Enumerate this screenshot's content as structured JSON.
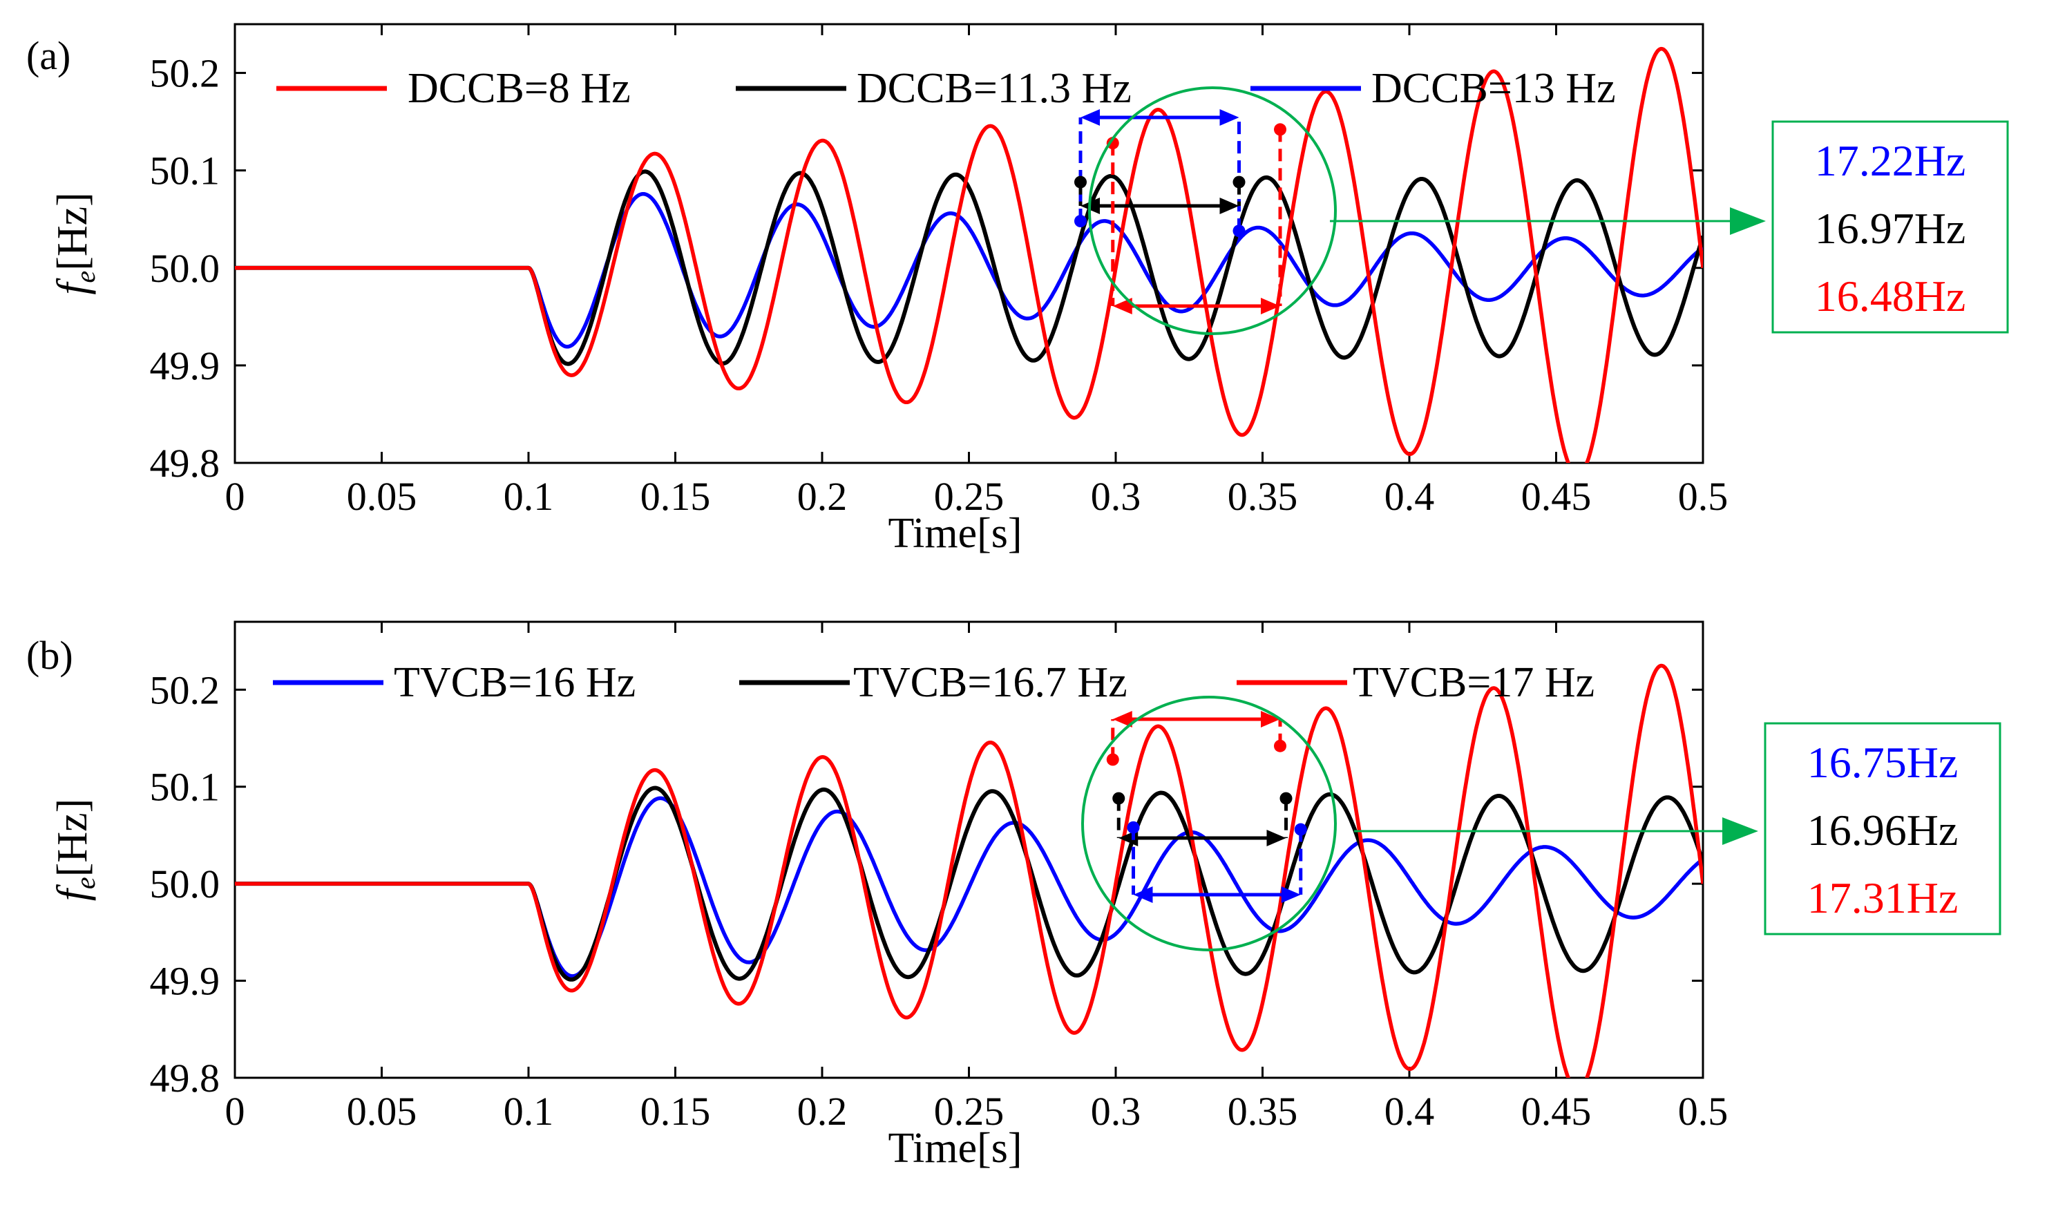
{
  "chart_data": [
    {
      "type": "line",
      "panel_label": "(a)",
      "xlabel": "Time[s]",
      "ylabel_main": "f",
      "ylabel_sub": "e",
      "ylabel_unit": "[Hz]",
      "xlim": [
        0,
        0.5
      ],
      "ylim": [
        49.8,
        50.25
      ],
      "xticks": [
        "0",
        "0.05",
        "0.1",
        "0.15",
        "0.2",
        "0.25",
        "0.3",
        "0.35",
        "0.4",
        "0.45",
        "0.5"
      ],
      "yticks": [
        "50.2",
        "50.1",
        "50.0",
        "49.9",
        "49.8"
      ],
      "fault_time": 0.1,
      "series": [
        {
          "name": "DCCB=8 Hz",
          "color": "#ff0000",
          "freq": 17.5,
          "amp0": 0.108,
          "growth": 1.9
        },
        {
          "name": "DCCB=11.3 Hz",
          "color": "#000000",
          "freq": 18.9,
          "amp0": 0.1,
          "growth": -0.3
        },
        {
          "name": "DCCB=13 Hz",
          "color": "#0000ff",
          "freq": 19.1,
          "amp0": 0.085,
          "growth": -2.9
        }
      ],
      "annotation": {
        "circle_color": "#00b050",
        "box_lines": [
          {
            "text": "17.22Hz",
            "color": "#0000ff"
          },
          {
            "text": "16.97Hz",
            "color": "#000000"
          },
          {
            "text": "16.48Hz",
            "color": "#ff0000"
          }
        ],
        "period_markers": [
          {
            "color": "#0000ff",
            "t1": 0.288,
            "y1": 50.048,
            "t2": 0.342,
            "y2": 50.038
          },
          {
            "color": "#000000",
            "t1": 0.288,
            "y1": 50.088,
            "t2": 0.342,
            "y2": 50.088
          },
          {
            "color": "#ff0000",
            "t1": 0.299,
            "y1": 50.128,
            "t2": 0.356,
            "y2": 50.142
          }
        ]
      }
    },
    {
      "type": "line",
      "panel_label": "(b)",
      "xlabel": "Time[s]",
      "ylabel_main": "f",
      "ylabel_sub": "e",
      "ylabel_unit": "[Hz]",
      "xlim": [
        0,
        0.5
      ],
      "ylim": [
        49.8,
        50.27
      ],
      "xticks": [
        "0",
        "0.05",
        "0.1",
        "0.15",
        "0.2",
        "0.25",
        "0.3",
        "0.35",
        "0.4",
        "0.45",
        "0.5"
      ],
      "yticks": [
        "50.2",
        "50.1",
        "50.0",
        "49.9",
        "49.8"
      ],
      "fault_time": 0.1,
      "series": [
        {
          "name": "TVCB=16 Hz",
          "color": "#0000ff",
          "freq": 16.6,
          "amp0": 0.1,
          "growth": -2.8
        },
        {
          "name": "TVCB=16.7 Hz",
          "color": "#000000",
          "freq": 17.4,
          "amp0": 0.1,
          "growth": -0.3
        },
        {
          "name": "TVCB=17 Hz",
          "color": "#ff0000",
          "freq": 17.5,
          "amp0": 0.108,
          "growth": 1.9
        }
      ],
      "annotation": {
        "circle_color": "#00b050",
        "box_lines": [
          {
            "text": "16.75Hz",
            "color": "#0000ff"
          },
          {
            "text": "16.96Hz",
            "color": "#000000"
          },
          {
            "text": "17.31Hz",
            "color": "#ff0000"
          }
        ],
        "period_markers": [
          {
            "color": "#ff0000",
            "t1": 0.299,
            "y1": 50.128,
            "t2": 0.356,
            "y2": 50.142
          },
          {
            "color": "#000000",
            "t1": 0.301,
            "y1": 50.088,
            "t2": 0.358,
            "y2": 50.088
          },
          {
            "color": "#0000ff",
            "t1": 0.306,
            "y1": 50.058,
            "t2": 0.363,
            "y2": 50.056
          }
        ]
      }
    }
  ]
}
